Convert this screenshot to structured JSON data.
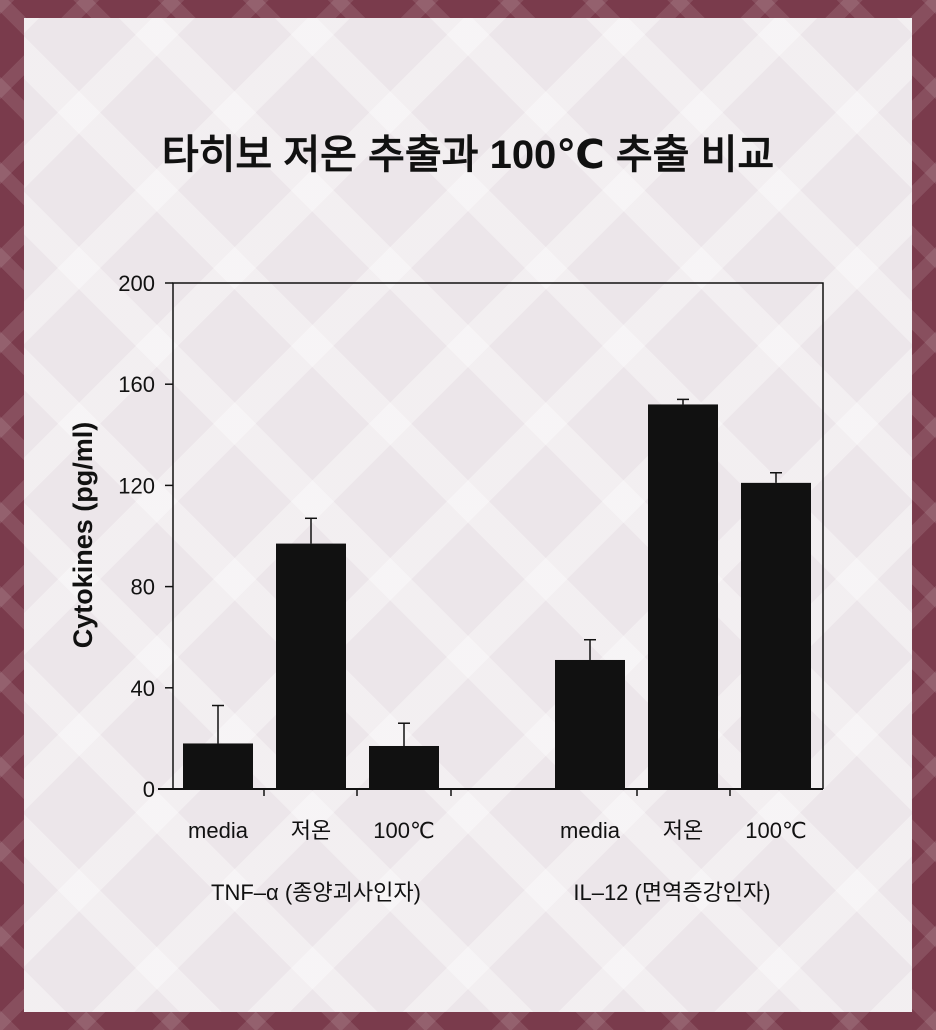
{
  "chart_data": {
    "type": "bar",
    "title": "타히보 저온 추출과 100℃ 추출 비교",
    "ylabel": "Cytokines (pg/ml)",
    "ylim": [
      0,
      200
    ],
    "yticks": [
      "0",
      "40",
      "80",
      "120",
      "160",
      "200"
    ],
    "grid": false,
    "groups": [
      {
        "name": "TNF–α (종양괴사인자)",
        "categories": [
          "media",
          "저온",
          "100℃"
        ],
        "values": [
          18,
          97,
          17
        ],
        "errors": [
          15,
          10,
          9
        ]
      },
      {
        "name": "IL–12 (면역증강인자)",
        "categories": [
          "media",
          "저온",
          "100℃"
        ],
        "values": [
          51,
          152,
          121
        ],
        "errors": [
          8,
          2,
          4
        ]
      }
    ],
    "colors": {
      "bar": "#111111",
      "axis": "#111111",
      "background": "#ece6ea",
      "frame": "#7a3b4c"
    }
  }
}
